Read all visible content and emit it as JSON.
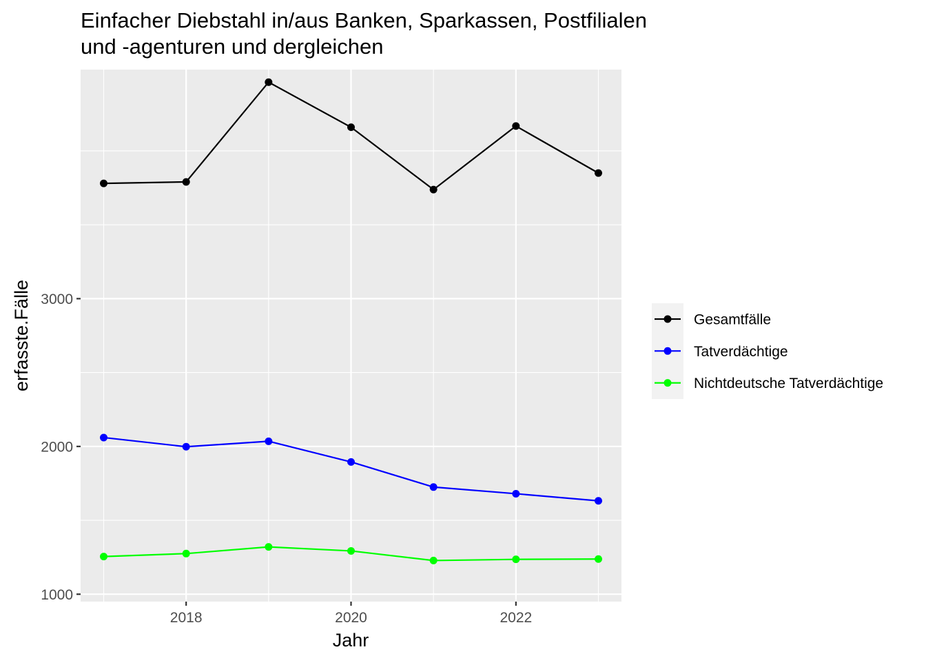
{
  "chart_data": {
    "type": "line",
    "title_lines": [
      "Einfacher Diebstahl in/aus Banken, Sparkassen, Postfilialen",
      "und -agenturen und dergleichen"
    ],
    "xlabel": "Jahr",
    "ylabel": "erfasste.Fälle",
    "x": [
      2017,
      2018,
      2019,
      2020,
      2021,
      2022,
      2023
    ],
    "xlim": [
      2016.72,
      2023.28
    ],
    "ylim": [
      950,
      4550
    ],
    "x_ticks": [
      2018,
      2020,
      2022
    ],
    "x_tick_labels": [
      "2018",
      "2020",
      "2022"
    ],
    "y_ticks": [
      1000,
      2000,
      3000
    ],
    "y_tick_labels": [
      "1000",
      "2000",
      "3000"
    ],
    "y_minor_ticks": [
      1500,
      2500,
      3500,
      4000
    ],
    "grid": true,
    "legend_position": "right",
    "series": [
      {
        "name": "Gesamtfälle",
        "color": "#000000",
        "values": [
          3780,
          3790,
          4465,
          4160,
          3738,
          4168,
          3850
        ]
      },
      {
        "name": "Tatverdächtige",
        "color": "#0000ff",
        "values": [
          2060,
          1998,
          2035,
          1895,
          1725,
          1680,
          1632
        ]
      },
      {
        "name": "Nichtdeutsche Tatverdächtige",
        "color": "#00ff00",
        "values": [
          1255,
          1275,
          1320,
          1293,
          1228,
          1236,
          1238
        ]
      }
    ]
  }
}
